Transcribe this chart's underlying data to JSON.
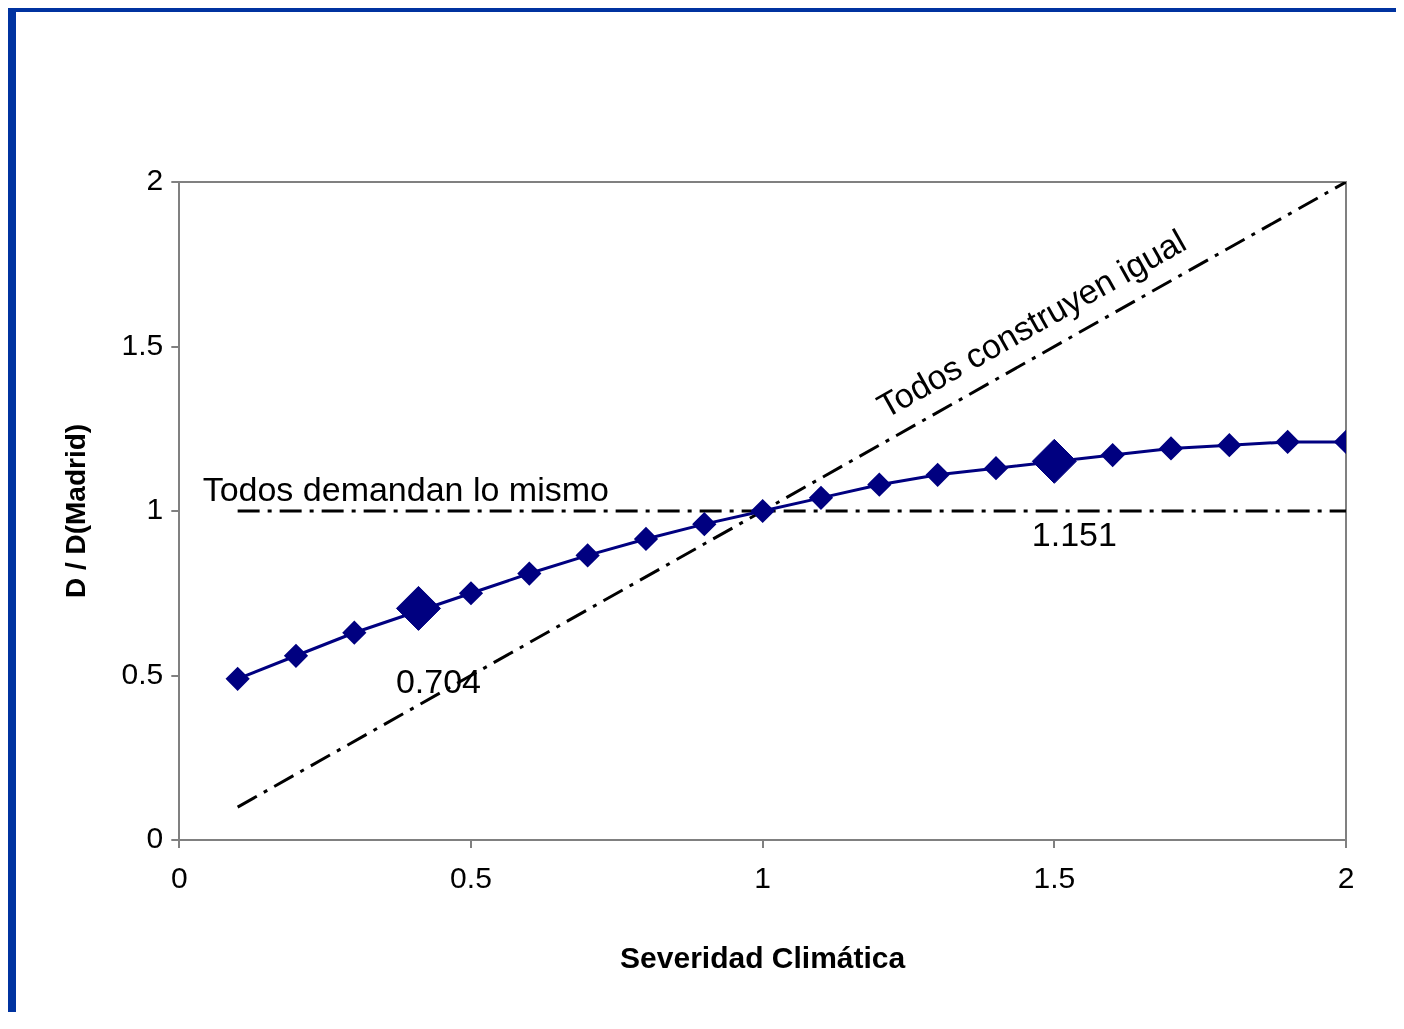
{
  "chart_data": {
    "type": "scatter",
    "xlabel": "Severidad Climática",
    "ylabel": "D / D(Madrid)",
    "xlim": [
      0,
      2
    ],
    "xticks": [
      0,
      0.5,
      1,
      1.5,
      2
    ],
    "ylim": [
      0,
      2
    ],
    "yticks": [
      0,
      0.5,
      1,
      1.5,
      2
    ],
    "grid": false,
    "legend": false,
    "series": [
      {
        "type": "line",
        "color": "#000080",
        "marker": "diamond",
        "line_style": "solid",
        "x": [
          0.1,
          0.2,
          0.3,
          0.5,
          0.6,
          0.7,
          0.8,
          0.9,
          1.0,
          1.1,
          1.2,
          1.3,
          1.4,
          1.6,
          1.7,
          1.8,
          1.9,
          2.0
        ],
        "values": [
          0.49,
          0.56,
          0.63,
          0.75,
          0.81,
          0.865,
          0.915,
          0.96,
          1.0,
          1.04,
          1.08,
          1.11,
          1.13,
          1.17,
          1.19,
          1.2,
          1.21,
          1.21
        ]
      },
      {
        "color": "#000080",
        "marker": "diamond",
        "x": [
          0.41,
          1.5
        ],
        "values": [
          0.704,
          1.151
        ],
        "value_labels": [
          "0.704",
          "1.151"
        ]
      },
      {
        "type": "line",
        "name": "Todos construyen igual",
        "color": "#000000",
        "marker": "none",
        "line_style": "dashed",
        "x": [
          0.1,
          2.0
        ],
        "values": [
          0.1,
          2.0
        ]
      },
      {
        "type": "line",
        "name": "Todos demandan lo mismo",
        "color": "#000000",
        "marker": "none",
        "line_style": "dashed",
        "x": [
          0.1,
          2.0
        ],
        "values": [
          1.0,
          1.0
        ]
      }
    ]
  }
}
